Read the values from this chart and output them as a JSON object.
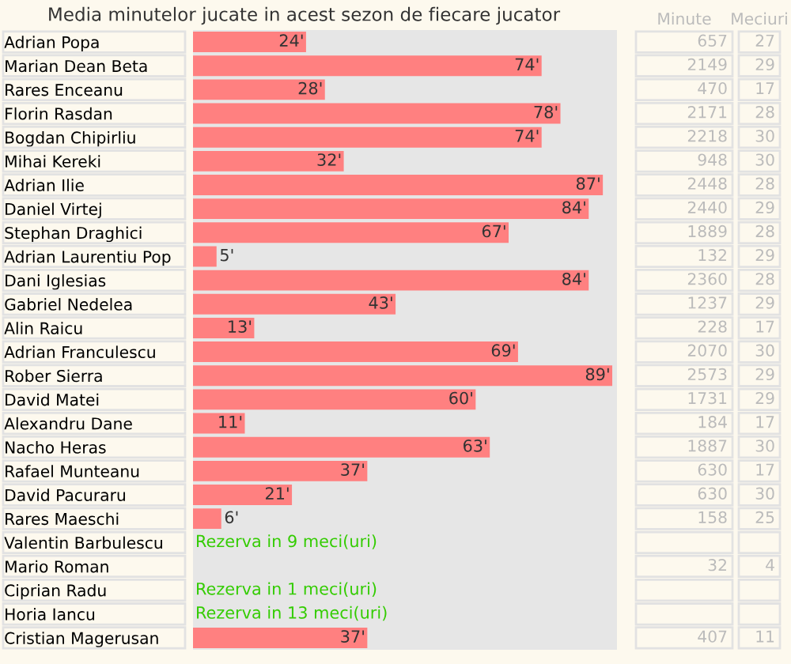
{
  "chart_data": [
    {
      "type": "bar",
      "orientation": "horizontal",
      "title": "Media minutelor jucate in acest sezon de fiecare jucator",
      "xlim": [
        0,
        90
      ],
      "tick_labels": "y",
      "grid": false,
      "legend": false,
      "categories": [
        "Adrian Popa",
        "Marian Dean Beta",
        "Rares Enceanu",
        "Florin Rasdan",
        "Bogdan Chipirliu",
        "Mihai Kereki",
        "Adrian Ilie",
        "Daniel Virtej",
        "Stephan Draghici",
        "Adrian Laurentiu Pop",
        "Dani Iglesias",
        "Gabriel Nedelea",
        "Alin Raicu",
        "Adrian Franculescu",
        "Rober Sierra",
        "David Matei",
        "Alexandru Dane",
        "Nacho Heras",
        "Rafael Munteanu",
        "David Pacuraru",
        "Rares Maeschi",
        "Valentin Barbulescu",
        "Mario Roman",
        "Ciprian Radu",
        "Horia Iancu",
        "Cristian Magerusan"
      ],
      "series": [
        {
          "type": "bar",
          "color": "#ff8080",
          "values": [
            24,
            74,
            28,
            78,
            74,
            32,
            87,
            84,
            67,
            5,
            84,
            43,
            13,
            69,
            89,
            60,
            11,
            63,
            37,
            21,
            6,
            null,
            null,
            null,
            null,
            37
          ],
          "value_labels": [
            "24'",
            "74'",
            "28'",
            "78'",
            "74'",
            "32'",
            "87'",
            "84'",
            "67'",
            "5'",
            "84'",
            "43'",
            "13'",
            "69'",
            "89'",
            "60'",
            "11'",
            "63'",
            "37'",
            "21'",
            "6'",
            "Rezerva in 9 meci(uri)",
            null,
            "Rezerva in 1 meci(uri)",
            "Rezerva in 13 meci(uri)",
            "37'"
          ]
        }
      ]
    },
    {
      "type": "heatmap",
      "data_labels": true,
      "tick_labels": "x",
      "categories": [
        "Minute",
        "Meciuri"
      ],
      "y_categories": [
        "Adrian Popa",
        "Marian Dean Beta",
        "Rares Enceanu",
        "Florin Rasdan",
        "Bogdan Chipirliu",
        "Mihai Kereki",
        "Adrian Ilie",
        "Daniel Virtej",
        "Stephan Draghici",
        "Adrian Laurentiu Pop",
        "Dani Iglesias",
        "Gabriel Nedelea",
        "Alin Raicu",
        "Adrian Franculescu",
        "Rober Sierra",
        "David Matei",
        "Alexandru Dane",
        "Nacho Heras",
        "Rafael Munteanu",
        "David Pacuraru",
        "Rares Maeschi"
      ],
      "cells": [
        [
          657,
          27
        ],
        [
          2149,
          29
        ],
        [
          470,
          17
        ],
        [
          2171,
          28
        ],
        [
          2218,
          30
        ],
        [
          948,
          30
        ],
        [
          2448,
          28
        ],
        [
          2440,
          29
        ],
        [
          1889,
          28
        ],
        [
          132,
          29
        ],
        [
          2360,
          28
        ],
        [
          1237,
          29
        ],
        [
          228,
          17
        ],
        [
          2070,
          30
        ],
        [
          2573,
          29
        ],
        [
          1731,
          29
        ],
        [
          184,
          17
        ],
        [
          1887,
          30
        ],
        [
          630,
          17
        ],
        [
          630,
          30
        ],
        [
          158,
          25
        ]
      ]
    },
    {
      "type": "heatmap",
      "data_labels": true,
      "tick_labels": false,
      "categories": [
        null,
        null
      ],
      "y_categories": [
        "Mario Roman"
      ],
      "cells": [
        [
          32,
          4
        ]
      ]
    },
    {
      "type": "heatmap",
      "data_labels": true,
      "tick_labels": false,
      "categories": [
        null,
        null
      ],
      "y_categories": [
        "Cristian Magerusan"
      ],
      "cells": [
        [
          407,
          11
        ]
      ]
    }
  ]
}
